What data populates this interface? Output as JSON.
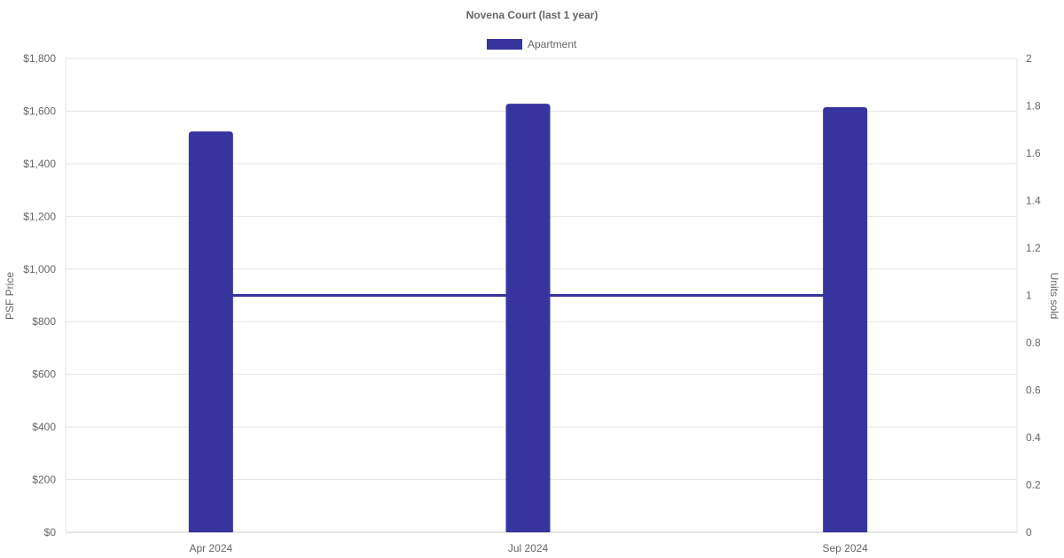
{
  "chart_data": {
    "type": "bar",
    "title": "Novena Court (last 1 year)",
    "categories": [
      "Apr 2024",
      "Jul 2024",
      "Sep 2024"
    ],
    "series": [
      {
        "name": "Apartment",
        "type": "bar",
        "axis": "left",
        "values": [
          1523,
          1628,
          1615
        ],
        "color": "#38349e"
      },
      {
        "type": "line",
        "axis": "right",
        "values": [
          1,
          1,
          1
        ],
        "color": "#38349e"
      }
    ],
    "ylabel": "PSF Price",
    "ylabel_right": "Units sold",
    "ylim": [
      0,
      1800
    ],
    "ylim_right": [
      0,
      2
    ],
    "yticks": [
      "$0",
      "$200",
      "$400",
      "$600",
      "$800",
      "$1,000",
      "$1,200",
      "$1,400",
      "$1,600",
      "$1,800"
    ],
    "yticks_right": [
      "0",
      "0.2",
      "0.4",
      "0.6",
      "0.8",
      "1",
      "1.2",
      "1.4",
      "1.6",
      "1.8",
      "2"
    ],
    "grid": true,
    "legend": "top"
  }
}
